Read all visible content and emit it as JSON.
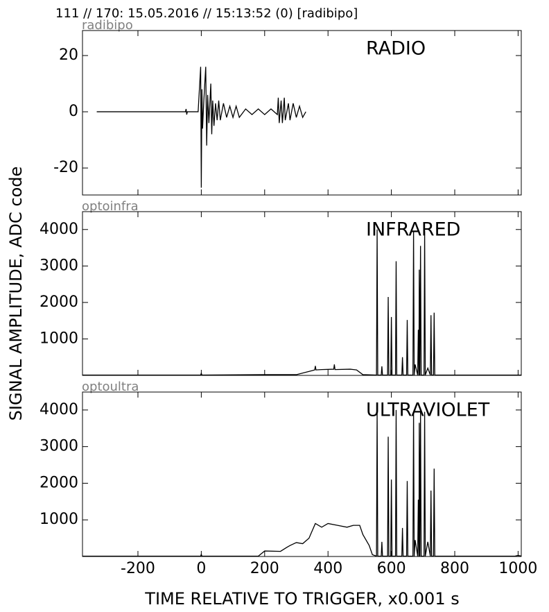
{
  "figure": {
    "title": "111 // 170:   15.05.2016 // 15:13:52 (0)  [radibipo]",
    "ylabel": "SIGNAL AMPLITUDE,  ADC code",
    "xlabel": "TIME RELATIVE TO TRIGGER,   x0.001 s"
  },
  "chart_data": [
    {
      "type": "line",
      "label": "radibipo",
      "annotation": "RADIO",
      "xlim": [
        -375,
        1010
      ],
      "ylim": [
        -29.6,
        28.9
      ],
      "yticks": [
        -20,
        0,
        20
      ],
      "series": [
        {
          "color": "#000000",
          "x": [
            -330,
            -50,
            -48,
            -46,
            -44,
            -10,
            -2,
            0,
            2,
            4,
            8,
            14,
            17,
            20,
            24,
            30,
            33,
            36,
            40,
            45,
            50,
            55,
            60,
            70,
            80,
            90,
            100,
            110,
            120,
            140,
            160,
            180,
            200,
            220,
            240,
            243,
            246,
            252,
            256,
            262,
            265,
            275,
            280,
            290,
            300,
            310,
            320,
            330
          ],
          "values": [
            0,
            0,
            1,
            -1,
            0,
            0,
            16,
            -27,
            8,
            -6,
            4,
            16,
            -12,
            6,
            -4,
            10,
            -8,
            4,
            -5,
            3,
            -3,
            4,
            -3,
            3,
            -2,
            2,
            -2,
            2,
            -2,
            1,
            -1,
            1,
            -1,
            1,
            -1,
            5,
            -4,
            4,
            -4,
            5,
            -3,
            3,
            -3,
            3,
            -2,
            2,
            -2,
            0
          ]
        }
      ]
    },
    {
      "type": "line",
      "label": "optoinfra",
      "annotation": "INFRARED",
      "xlim": [
        -375,
        1010
      ],
      "ylim": [
        0,
        4490
      ],
      "yticks": [
        1000,
        2000,
        3000,
        4000
      ],
      "series": [
        {
          "color": "#000000",
          "x": [
            -375,
            -2,
            0,
            2,
            200,
            300,
            350,
            358,
            360,
            362,
            380,
            418,
            420,
            422,
            470,
            490,
            510,
            553,
            555,
            557,
            568,
            570,
            572,
            588,
            590,
            592,
            598,
            600,
            602,
            613,
            615,
            617,
            633,
            635,
            637,
            648,
            650,
            652,
            668,
            670,
            672,
            675,
            683,
            685,
            687,
            688,
            690,
            692,
            694,
            703,
            705,
            707,
            715,
            723,
            725,
            727,
            733,
            735,
            737,
            745,
            1000,
            1010
          ],
          "values": [
            10,
            10,
            60,
            10,
            20,
            20,
            130,
            150,
            260,
            150,
            160,
            170,
            300,
            160,
            170,
            150,
            20,
            10,
            4000,
            10,
            10,
            250,
            10,
            10,
            2150,
            10,
            10,
            1600,
            10,
            10,
            3130,
            10,
            10,
            500,
            10,
            10,
            1520,
            10,
            10,
            3950,
            10,
            300,
            10,
            1250,
            10,
            2900,
            10,
            3550,
            10,
            10,
            3950,
            10,
            200,
            10,
            1650,
            10,
            10,
            1720,
            10,
            10,
            10,
            10
          ]
        }
      ]
    },
    {
      "type": "line",
      "label": "optoultra",
      "annotation": "ULTRAVIOLET",
      "xlim": [
        -375,
        1010
      ],
      "ylim": [
        0,
        4490
      ],
      "yticks": [
        1000,
        2000,
        3000,
        4000
      ],
      "xticks": [
        -200,
        0,
        200,
        400,
        600,
        800,
        1000
      ],
      "series": [
        {
          "color": "#000000",
          "x": [
            -375,
            -2,
            0,
            2,
            180,
            200,
            250,
            270,
            280,
            300,
            320,
            340,
            350,
            360,
            380,
            400,
            430,
            460,
            480,
            500,
            510,
            530,
            540,
            553,
            555,
            557,
            568,
            570,
            572,
            588,
            590,
            592,
            598,
            600,
            602,
            613,
            615,
            617,
            633,
            635,
            637,
            648,
            650,
            652,
            668,
            670,
            672,
            675,
            683,
            685,
            687,
            688,
            690,
            692,
            694,
            703,
            705,
            707,
            715,
            723,
            725,
            727,
            733,
            735,
            737,
            745,
            990,
            1000,
            1010
          ],
          "values": [
            10,
            10,
            60,
            10,
            10,
            150,
            140,
            250,
            300,
            380,
            350,
            500,
            700,
            900,
            800,
            900,
            850,
            800,
            850,
            850,
            600,
            300,
            50,
            10,
            4000,
            10,
            10,
            400,
            10,
            10,
            3270,
            10,
            10,
            2100,
            10,
            10,
            4000,
            10,
            10,
            780,
            10,
            10,
            2060,
            10,
            10,
            3950,
            10,
            450,
            10,
            1550,
            10,
            3650,
            10,
            3950,
            10,
            10,
            3950,
            10,
            400,
            10,
            1800,
            10,
            10,
            2400,
            10,
            10,
            10,
            30,
            10
          ]
        }
      ]
    }
  ]
}
